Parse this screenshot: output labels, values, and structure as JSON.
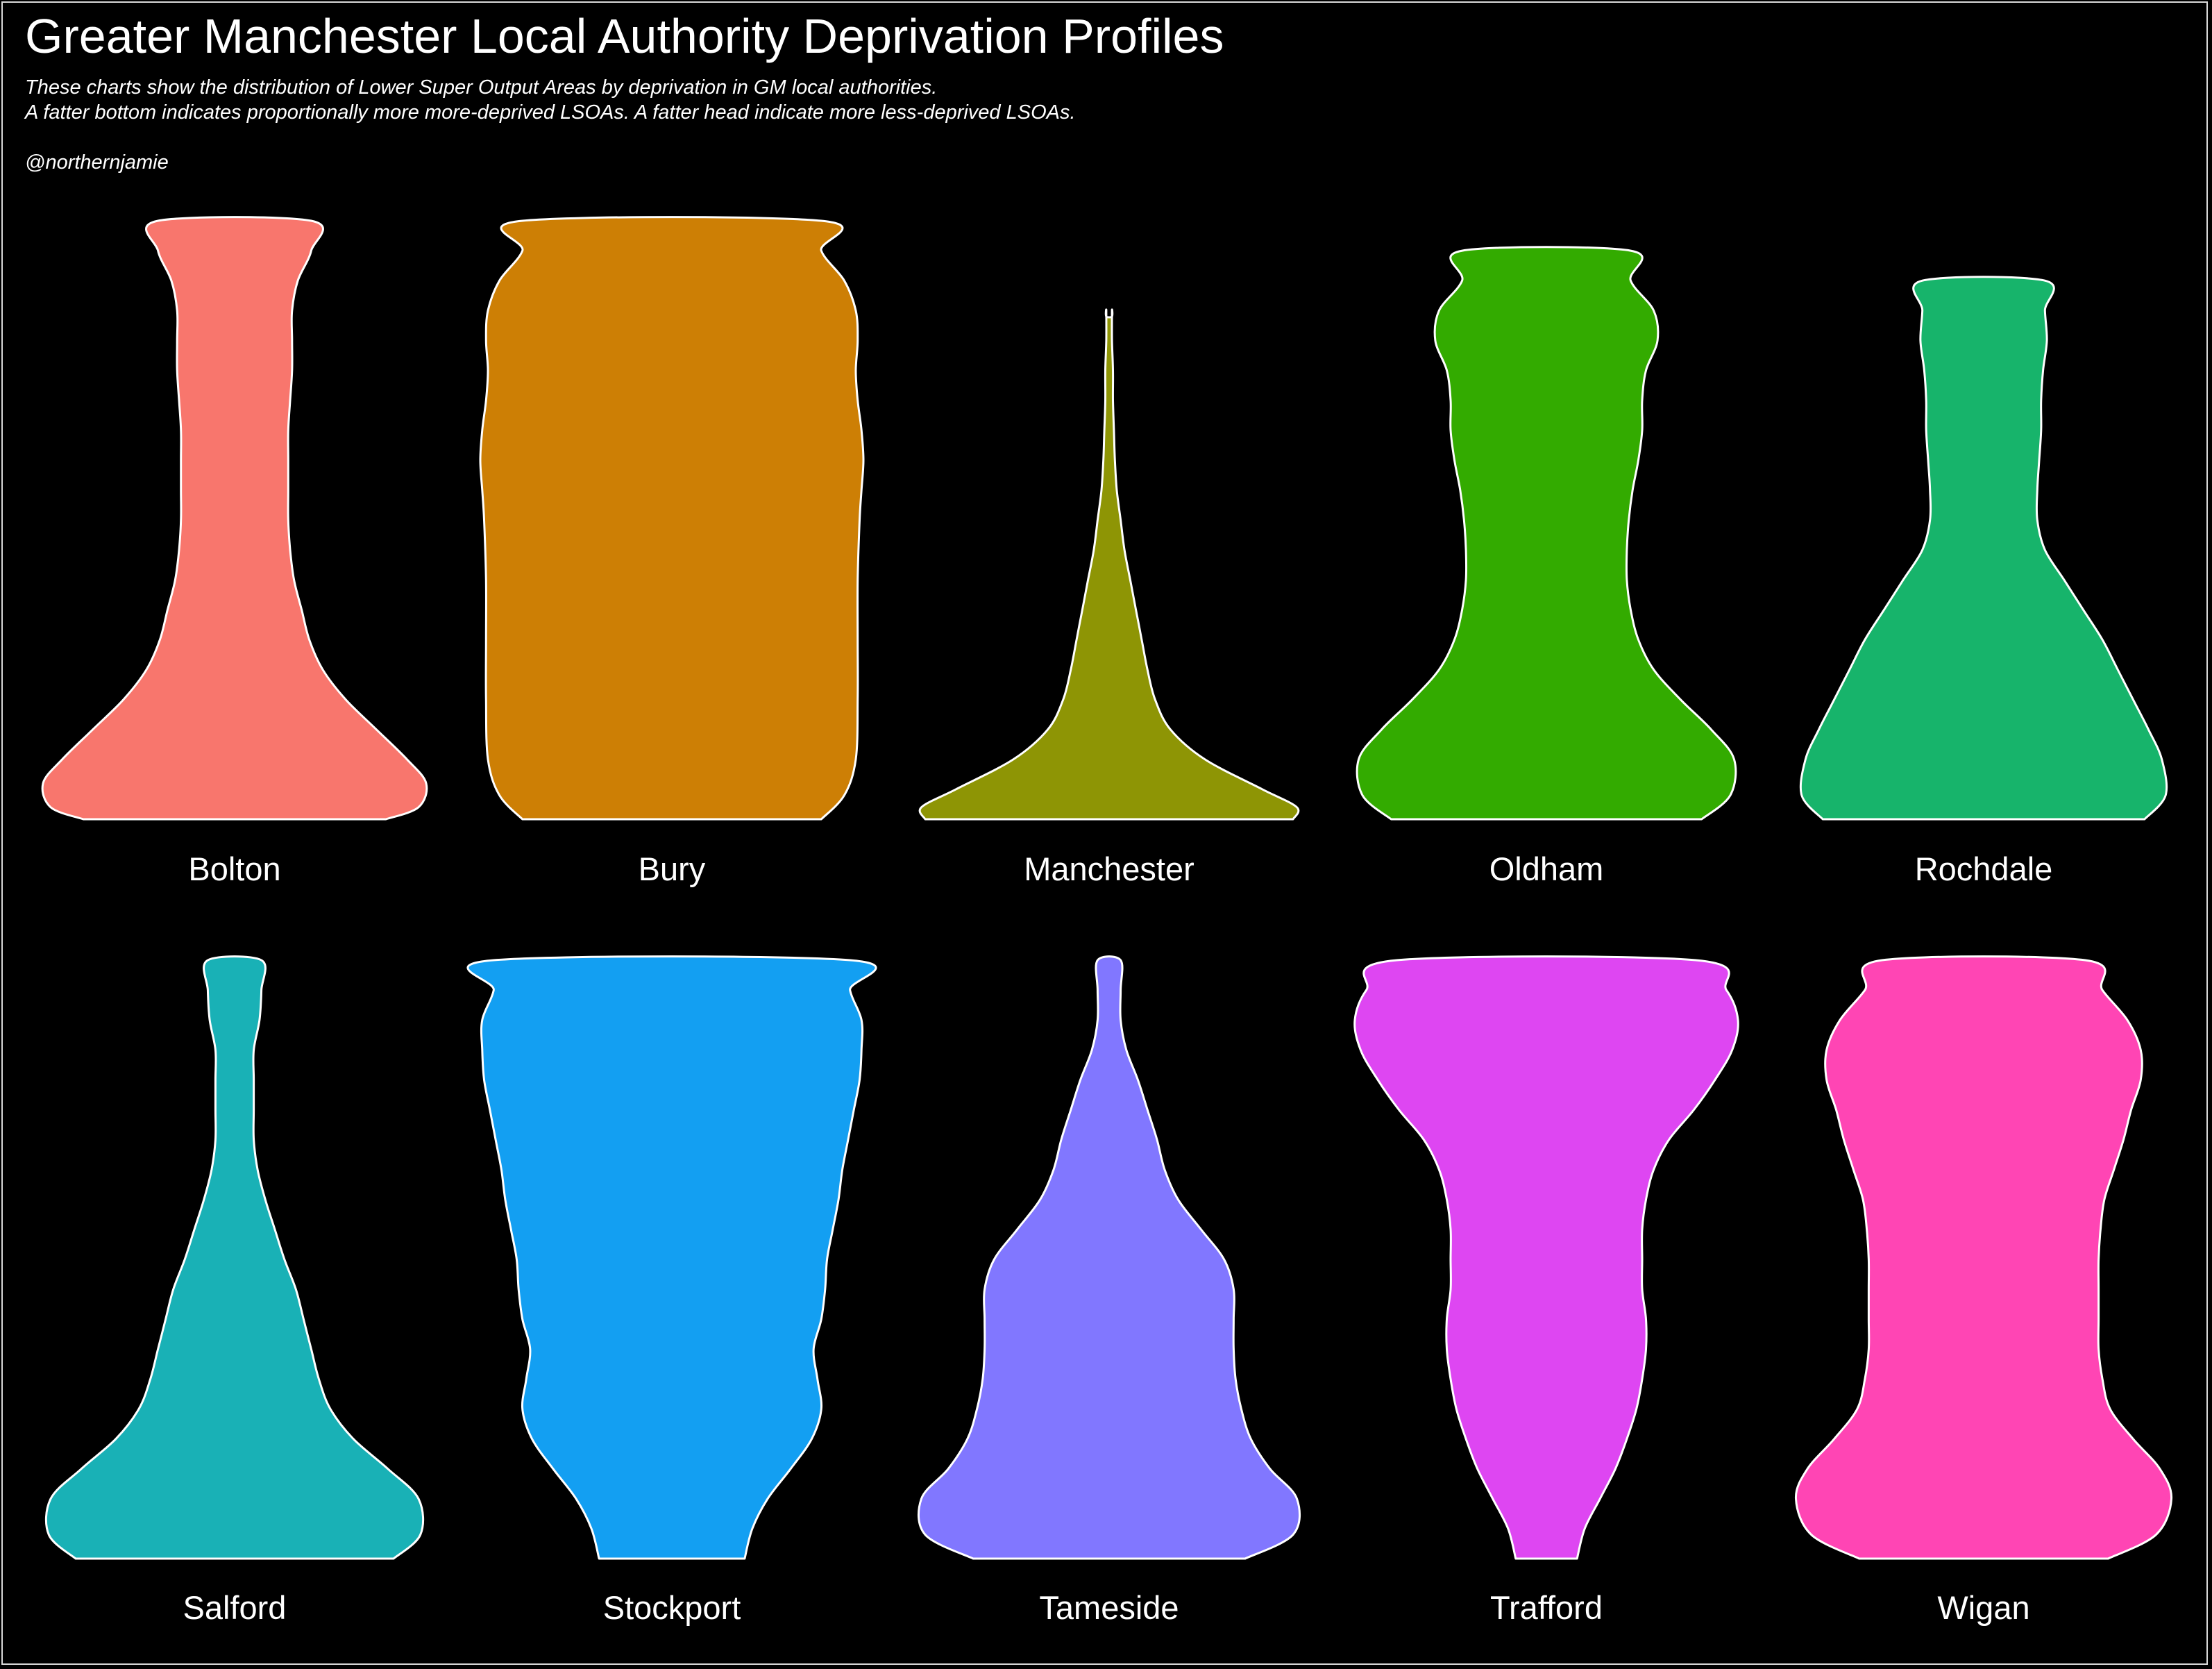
{
  "title": "Greater Manchester Local Authority Deprivation Profiles",
  "subtitle_lines": [
    "These charts show the distribution of Lower Super Output Areas by deprivation in GM local authorities.",
    "A fatter bottom indicates proportionally more more-deprived LSOAs. A fatter head indicate more less-deprived LSOAs."
  ],
  "credit": "@northernjamie",
  "chart_data": {
    "type": "violin",
    "layout": "facets 5 x 2",
    "legend": "none",
    "grid": false,
    "background": "#000000",
    "outline_color": "#ffffff",
    "facets": [
      {
        "name": "Bolton",
        "color": "#F8766D",
        "profile": {
          "y": [
            0,
            0.02,
            0.06,
            0.1,
            0.15,
            0.2,
            0.25,
            0.3,
            0.35,
            0.4,
            0.45,
            0.5,
            0.55,
            0.6,
            0.65,
            0.7,
            0.75,
            0.8,
            0.85,
            0.9,
            0.95,
            1.0
          ],
          "width": [
            0.79,
            0.96,
            1.0,
            0.9,
            0.74,
            0.58,
            0.46,
            0.39,
            0.35,
            0.31,
            0.29,
            0.28,
            0.28,
            0.28,
            0.28,
            0.29,
            0.3,
            0.3,
            0.3,
            0.33,
            0.4,
            0.4
          ]
        }
      },
      {
        "name": "Bury",
        "color": "#CD7F05",
        "profile": {
          "y": [
            0,
            0.04,
            0.1,
            0.2,
            0.3,
            0.4,
            0.5,
            0.55,
            0.6,
            0.65,
            0.7,
            0.75,
            0.8,
            0.85,
            0.9,
            0.95,
            1.0
          ],
          "width": [
            0.78,
            0.9,
            0.96,
            0.97,
            0.97,
            0.97,
            0.98,
            0.99,
            1.0,
            0.99,
            0.97,
            0.96,
            0.97,
            0.96,
            0.9,
            0.78,
            0.78
          ]
        }
      },
      {
        "name": "Manchester",
        "color": "#8E9505",
        "profile": {
          "y": [
            0,
            0.02,
            0.05,
            0.1,
            0.15,
            0.2,
            0.25,
            0.3,
            0.35,
            0.4,
            0.45,
            0.5,
            0.55,
            0.6,
            0.65,
            0.7,
            0.75,
            0.8,
            0.85,
            0.84
          ],
          "width": [
            0.96,
            0.98,
            0.8,
            0.5,
            0.32,
            0.24,
            0.2,
            0.17,
            0.14,
            0.11,
            0.08,
            0.06,
            0.04,
            0.03,
            0.025,
            0.02,
            0.02,
            0.015,
            0.015,
            0.015
          ]
        }
      },
      {
        "name": "Oldham",
        "color": "#33AB00",
        "profile": {
          "y": [
            0,
            0.04,
            0.1,
            0.15,
            0.2,
            0.25,
            0.3,
            0.35,
            0.4,
            0.45,
            0.5,
            0.55,
            0.6,
            0.65,
            0.7,
            0.75,
            0.8,
            0.85,
            0.9,
            0.95
          ],
          "width": [
            0.81,
            0.96,
            0.98,
            0.86,
            0.7,
            0.56,
            0.48,
            0.44,
            0.42,
            0.42,
            0.43,
            0.45,
            0.48,
            0.5,
            0.5,
            0.52,
            0.58,
            0.56,
            0.44,
            0.44
          ]
        }
      },
      {
        "name": "Rochdale",
        "color": "#17B46B",
        "profile": {
          "y": [
            0,
            0.04,
            0.1,
            0.15,
            0.2,
            0.25,
            0.3,
            0.35,
            0.4,
            0.45,
            0.5,
            0.55,
            0.6,
            0.65,
            0.7,
            0.75,
            0.8,
            0.85,
            0.9
          ],
          "width": [
            0.84,
            0.95,
            0.93,
            0.86,
            0.78,
            0.7,
            0.62,
            0.52,
            0.42,
            0.32,
            0.28,
            0.28,
            0.29,
            0.3,
            0.3,
            0.31,
            0.33,
            0.32,
            0.32
          ]
        }
      },
      {
        "name": "Salford",
        "color": "#19B1B6",
        "profile": {
          "y": [
            0,
            0.04,
            0.1,
            0.15,
            0.2,
            0.25,
            0.3,
            0.35,
            0.4,
            0.45,
            0.5,
            0.55,
            0.6,
            0.65,
            0.7,
            0.75,
            0.8,
            0.85,
            0.9,
            0.95,
            1.0
          ],
          "width": [
            0.83,
            0.97,
            0.96,
            0.8,
            0.62,
            0.5,
            0.44,
            0.4,
            0.36,
            0.32,
            0.26,
            0.21,
            0.16,
            0.12,
            0.1,
            0.1,
            0.1,
            0.1,
            0.13,
            0.14,
            0.14
          ]
        }
      },
      {
        "name": "Stockport",
        "color": "#139FF2",
        "profile": {
          "y": [
            0,
            0.05,
            0.1,
            0.15,
            0.2,
            0.25,
            0.3,
            0.35,
            0.4,
            0.45,
            0.5,
            0.55,
            0.6,
            0.65,
            0.7,
            0.75,
            0.8,
            0.85,
            0.9,
            0.95,
            1.0
          ],
          "width": [
            0.38,
            0.42,
            0.5,
            0.62,
            0.73,
            0.78,
            0.76,
            0.74,
            0.78,
            0.8,
            0.81,
            0.84,
            0.87,
            0.89,
            0.92,
            0.95,
            0.98,
            0.99,
            0.99,
            0.93,
            0.93
          ]
        }
      },
      {
        "name": "Tameside",
        "color": "#8177FF",
        "profile": {
          "y": [
            0,
            0.04,
            0.1,
            0.15,
            0.2,
            0.25,
            0.3,
            0.35,
            0.4,
            0.45,
            0.5,
            0.55,
            0.6,
            0.65,
            0.7,
            0.75,
            0.8,
            0.85,
            0.9,
            0.95,
            1.0
          ],
          "width": [
            0.71,
            0.96,
            0.98,
            0.84,
            0.74,
            0.69,
            0.66,
            0.65,
            0.65,
            0.65,
            0.6,
            0.48,
            0.36,
            0.29,
            0.25,
            0.2,
            0.15,
            0.09,
            0.06,
            0.06,
            0.06
          ]
        }
      },
      {
        "name": "Trafford",
        "color": "#DE46F2",
        "profile": {
          "y": [
            0,
            0.05,
            0.1,
            0.15,
            0.2,
            0.25,
            0.3,
            0.35,
            0.4,
            0.45,
            0.5,
            0.55,
            0.6,
            0.65,
            0.7,
            0.75,
            0.8,
            0.85,
            0.9,
            0.95,
            1.0
          ],
          "width": [
            0.16,
            0.2,
            0.28,
            0.36,
            0.42,
            0.47,
            0.5,
            0.52,
            0.52,
            0.5,
            0.5,
            0.5,
            0.52,
            0.56,
            0.64,
            0.77,
            0.88,
            0.97,
            1.0,
            0.94,
            0.78
          ]
        }
      },
      {
        "name": "Wigan",
        "color": "#FF45B4",
        "profile": {
          "y": [
            0,
            0.04,
            0.1,
            0.15,
            0.2,
            0.25,
            0.3,
            0.35,
            0.4,
            0.45,
            0.5,
            0.55,
            0.6,
            0.65,
            0.7,
            0.75,
            0.8,
            0.85,
            0.9,
            0.95,
            1.0
          ],
          "width": [
            0.65,
            0.9,
            0.98,
            0.92,
            0.78,
            0.66,
            0.62,
            0.6,
            0.6,
            0.6,
            0.6,
            0.61,
            0.63,
            0.68,
            0.73,
            0.77,
            0.82,
            0.82,
            0.75,
            0.62,
            0.53
          ]
        }
      }
    ]
  }
}
